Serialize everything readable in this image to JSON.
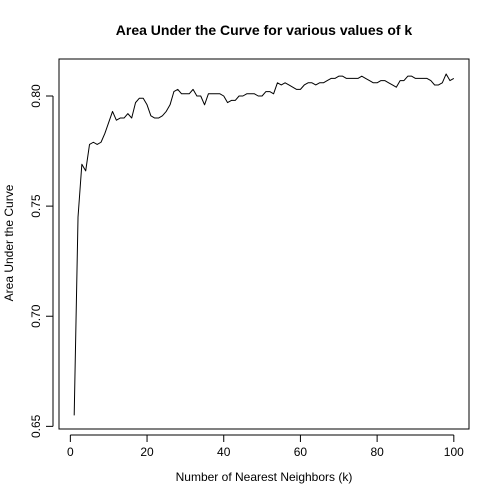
{
  "chart_data": {
    "type": "line",
    "title": "Area Under the Curve for various values of k",
    "xlabel": "Number of Nearest Neighbors (k)",
    "ylabel": "Area Under the Curve",
    "xlim": [
      -2.96,
      103.96
    ],
    "ylim": [
      0.6488,
      0.8168
    ],
    "xticks": [
      0,
      20,
      40,
      60,
      80,
      100
    ],
    "yticks": [
      0.65,
      0.7,
      0.75,
      0.8
    ],
    "xtick_labels": [
      "0",
      "20",
      "40",
      "60",
      "80",
      "100"
    ],
    "ytick_labels": [
      "0.65",
      "0.70",
      "0.75",
      "0.80"
    ],
    "grid": false,
    "series": [
      {
        "name": "AUC",
        "color": "#000000",
        "x": [
          1,
          2,
          3,
          4,
          5,
          6,
          7,
          8,
          9,
          10,
          11,
          12,
          13,
          14,
          15,
          16,
          17,
          18,
          19,
          20,
          21,
          22,
          23,
          24,
          25,
          26,
          27,
          28,
          29,
          30,
          31,
          32,
          33,
          34,
          35,
          36,
          37,
          38,
          39,
          40,
          41,
          42,
          43,
          44,
          45,
          46,
          47,
          48,
          49,
          50,
          51,
          52,
          53,
          54,
          55,
          56,
          57,
          58,
          59,
          60,
          61,
          62,
          63,
          64,
          65,
          66,
          67,
          68,
          69,
          70,
          71,
          72,
          73,
          74,
          75,
          76,
          77,
          78,
          79,
          80,
          81,
          82,
          83,
          84,
          85,
          86,
          87,
          88,
          89,
          90,
          91,
          92,
          93,
          94,
          95,
          96,
          97,
          98,
          99,
          100
        ],
        "y": [
          0.655,
          0.745,
          0.769,
          0.766,
          0.778,
          0.779,
          0.778,
          0.779,
          0.783,
          0.788,
          0.793,
          0.789,
          0.79,
          0.79,
          0.792,
          0.79,
          0.797,
          0.799,
          0.799,
          0.796,
          0.791,
          0.79,
          0.79,
          0.791,
          0.793,
          0.796,
          0.802,
          0.803,
          0.801,
          0.801,
          0.801,
          0.803,
          0.8,
          0.8,
          0.796,
          0.801,
          0.801,
          0.801,
          0.801,
          0.8,
          0.797,
          0.798,
          0.798,
          0.8,
          0.8,
          0.801,
          0.801,
          0.801,
          0.8,
          0.8,
          0.802,
          0.802,
          0.801,
          0.806,
          0.805,
          0.806,
          0.805,
          0.804,
          0.803,
          0.803,
          0.805,
          0.806,
          0.806,
          0.805,
          0.806,
          0.806,
          0.807,
          0.808,
          0.808,
          0.809,
          0.809,
          0.808,
          0.808,
          0.808,
          0.808,
          0.809,
          0.808,
          0.807,
          0.806,
          0.806,
          0.807,
          0.807,
          0.806,
          0.805,
          0.804,
          0.807,
          0.807,
          0.809,
          0.809,
          0.808,
          0.808,
          0.808,
          0.808,
          0.807,
          0.805,
          0.805,
          0.806,
          0.81,
          0.807,
          0.808
        ]
      }
    ]
  }
}
